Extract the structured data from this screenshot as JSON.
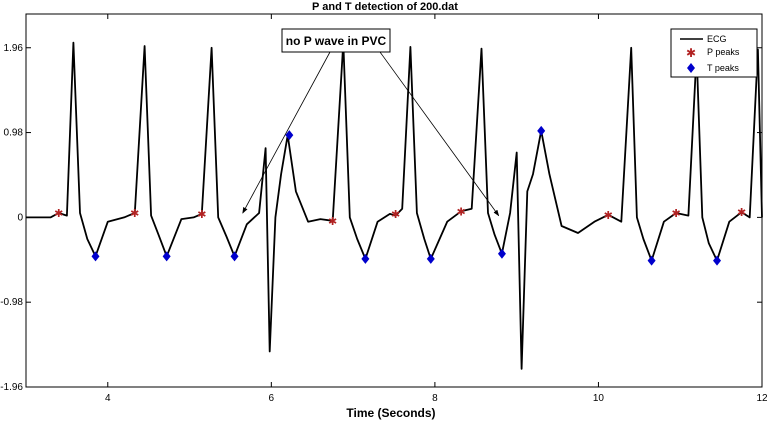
{
  "chart_data": {
    "type": "line",
    "title": "P and T detection of 200.dat",
    "xlabel": "Time (Seconds)",
    "ylabel": "",
    "xlim": [
      3,
      12
    ],
    "ylim": [
      -1.96,
      2.35
    ],
    "xticks": [
      4,
      6,
      8,
      10,
      12
    ],
    "yticks": [
      -1.96,
      -0.98,
      0,
      0.98,
      1.96
    ],
    "xtick_labels": [
      "4",
      "6",
      "8",
      "10",
      "12"
    ],
    "ytick_labels": [
      "-1.96",
      "-0.98",
      "0",
      "0.98",
      "1.96"
    ],
    "grid": false,
    "legend_position": "top-right",
    "series": [
      {
        "name": "ECG",
        "style": "line",
        "color": "#000000",
        "r_peak_times": [
          3.58,
          4.45,
          5.27,
          6.88,
          7.7,
          8.57,
          10.4,
          11.2,
          11.95
        ],
        "pvc_times": [
          6.2,
          9.3
        ],
        "x": [
          3.0,
          3.3,
          3.4,
          3.5,
          3.58,
          3.66,
          3.75,
          3.85,
          4.0,
          4.2,
          4.33,
          4.45,
          4.53,
          4.62,
          4.72,
          4.9,
          5.05,
          5.15,
          5.27,
          5.35,
          5.45,
          5.55,
          5.7,
          5.85,
          5.93,
          5.98,
          6.05,
          6.12,
          6.2,
          6.3,
          6.45,
          6.6,
          6.75,
          6.88,
          6.96,
          7.05,
          7.15,
          7.3,
          7.45,
          7.52,
          7.6,
          7.7,
          7.78,
          7.87,
          7.95,
          8.15,
          8.32,
          8.45,
          8.57,
          8.65,
          8.73,
          8.82,
          8.92,
          9.0,
          9.06,
          9.13,
          9.2,
          9.3,
          9.4,
          9.55,
          9.75,
          9.95,
          10.12,
          10.28,
          10.4,
          10.47,
          10.55,
          10.65,
          10.8,
          10.95,
          11.1,
          11.2,
          11.27,
          11.35,
          11.45,
          11.6,
          11.75,
          11.85,
          11.95,
          12.0
        ],
        "y": [
          0.0,
          0.0,
          0.05,
          0.02,
          2.02,
          0.05,
          -0.25,
          -0.45,
          -0.05,
          0.0,
          0.05,
          1.98,
          0.02,
          -0.2,
          -0.45,
          -0.02,
          0.0,
          0.04,
          1.96,
          0.0,
          -0.22,
          -0.45,
          -0.08,
          0.05,
          0.8,
          -1.55,
          0.0,
          0.5,
          0.95,
          0.3,
          -0.05,
          -0.02,
          -0.04,
          2.02,
          0.0,
          -0.25,
          -0.48,
          -0.05,
          0.04,
          0.02,
          0.1,
          1.97,
          0.05,
          -0.25,
          -0.48,
          -0.05,
          0.07,
          0.1,
          1.95,
          0.05,
          -0.2,
          -0.42,
          0.05,
          0.75,
          -1.75,
          0.3,
          0.5,
          1.0,
          0.5,
          -0.1,
          -0.18,
          -0.05,
          0.03,
          -0.05,
          1.96,
          0.0,
          -0.25,
          -0.5,
          -0.05,
          0.05,
          0.02,
          1.9,
          0.0,
          -0.3,
          -0.5,
          -0.05,
          0.06,
          0.0,
          1.94,
          0.0
        ]
      },
      {
        "name": "P peaks",
        "style": "marker-star",
        "color": "#b22222",
        "x": [
          3.4,
          4.33,
          5.15,
          6.75,
          7.52,
          8.32,
          10.12,
          10.95,
          11.75
        ],
        "y": [
          0.05,
          0.05,
          0.04,
          -0.04,
          0.04,
          0.07,
          0.03,
          0.05,
          0.06
        ]
      },
      {
        "name": "T peaks",
        "style": "marker-diamond",
        "color": "#0000cc",
        "x": [
          3.85,
          4.72,
          5.55,
          6.22,
          7.15,
          7.95,
          8.82,
          9.3,
          10.65,
          11.45
        ],
        "y": [
          -0.45,
          -0.45,
          -0.45,
          0.95,
          -0.48,
          -0.48,
          -0.42,
          1.0,
          -0.5,
          -0.5
        ]
      }
    ],
    "annotations": [
      {
        "text": "no P wave in PVC",
        "arrows_to": [
          {
            "x": 5.65,
            "y": 0.05
          },
          {
            "x": 8.78,
            "y": 0.02
          }
        ]
      }
    ]
  }
}
